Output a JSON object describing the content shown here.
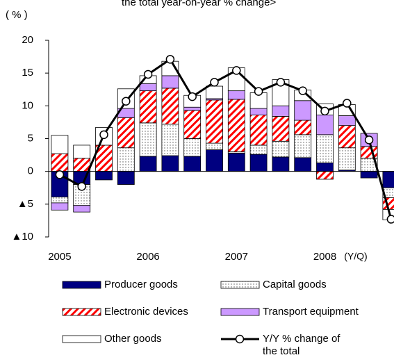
{
  "chart_data": {
    "type": "bar",
    "title": "the total year-on-year  % change>",
    "y_label": "( % )",
    "x_label": "(Y/Q)",
    "categories": [
      "2005",
      null,
      null,
      null,
      "2006",
      null,
      null,
      null,
      "2007",
      null,
      null,
      null,
      "2008",
      null,
      null,
      null
    ],
    "ylim": [
      -10,
      20
    ],
    "yticks": [
      {
        "value": -10,
        "label": "▲10"
      },
      {
        "value": -5,
        "label": "▲5"
      },
      0,
      5,
      10,
      15,
      20
    ],
    "grid": false,
    "legend": "bottom",
    "series": [
      {
        "name": "Producer goods",
        "color": "#000080",
        "pattern": "solid",
        "values": [
          -3.9,
          -2.0,
          -1.3,
          -2.0,
          2.3,
          2.4,
          2.3,
          3.3,
          2.8,
          2.6,
          2.2,
          2.1,
          1.3,
          0.2,
          -1.0,
          -2.5
        ]
      },
      {
        "name": "Capital goods",
        "color": "#ffffff",
        "pattern": "dots",
        "values": [
          -0.9,
          -3.2,
          0,
          3.6,
          5.1,
          4.8,
          2.7,
          1.0,
          0.2,
          1.4,
          2.4,
          3.5,
          4.3,
          3.4,
          2.0,
          -1.5
        ]
      },
      {
        "name": "Electronic devices",
        "color": "#ff0000",
        "pattern": "stripes",
        "values": [
          2.7,
          2.0,
          4.0,
          4.6,
          4.9,
          5.5,
          4.3,
          6.6,
          8.0,
          4.6,
          3.8,
          2.2,
          -1.2,
          3.4,
          1.8,
          -1.8
        ]
      },
      {
        "name": "Transport equipment",
        "color": "#cc99ff",
        "pattern": "solid",
        "values": [
          -1.1,
          -1.0,
          0,
          1.4,
          1.1,
          1.9,
          0.5,
          0.2,
          1.3,
          1.0,
          1.6,
          3.0,
          3.0,
          1.5,
          2.0,
          0
        ]
      },
      {
        "name": "Other goods",
        "color": "#ffffff",
        "pattern": "solid",
        "values": [
          2.8,
          2.0,
          2.7,
          3.0,
          1.2,
          2.2,
          1.8,
          1.9,
          3.5,
          2.4,
          4.0,
          1.6,
          1.7,
          1.7,
          0,
          -1.6
        ]
      },
      {
        "name": "Y/Y % change of the total",
        "type": "line",
        "color": "#000000",
        "marker": "circle",
        "values": [
          -0.5,
          -2.3,
          5.6,
          10.7,
          14.8,
          17.1,
          11.4,
          13.6,
          15.4,
          12.2,
          13.6,
          12.3,
          9.2,
          10.4,
          4.8,
          -7.3
        ]
      }
    ]
  }
}
